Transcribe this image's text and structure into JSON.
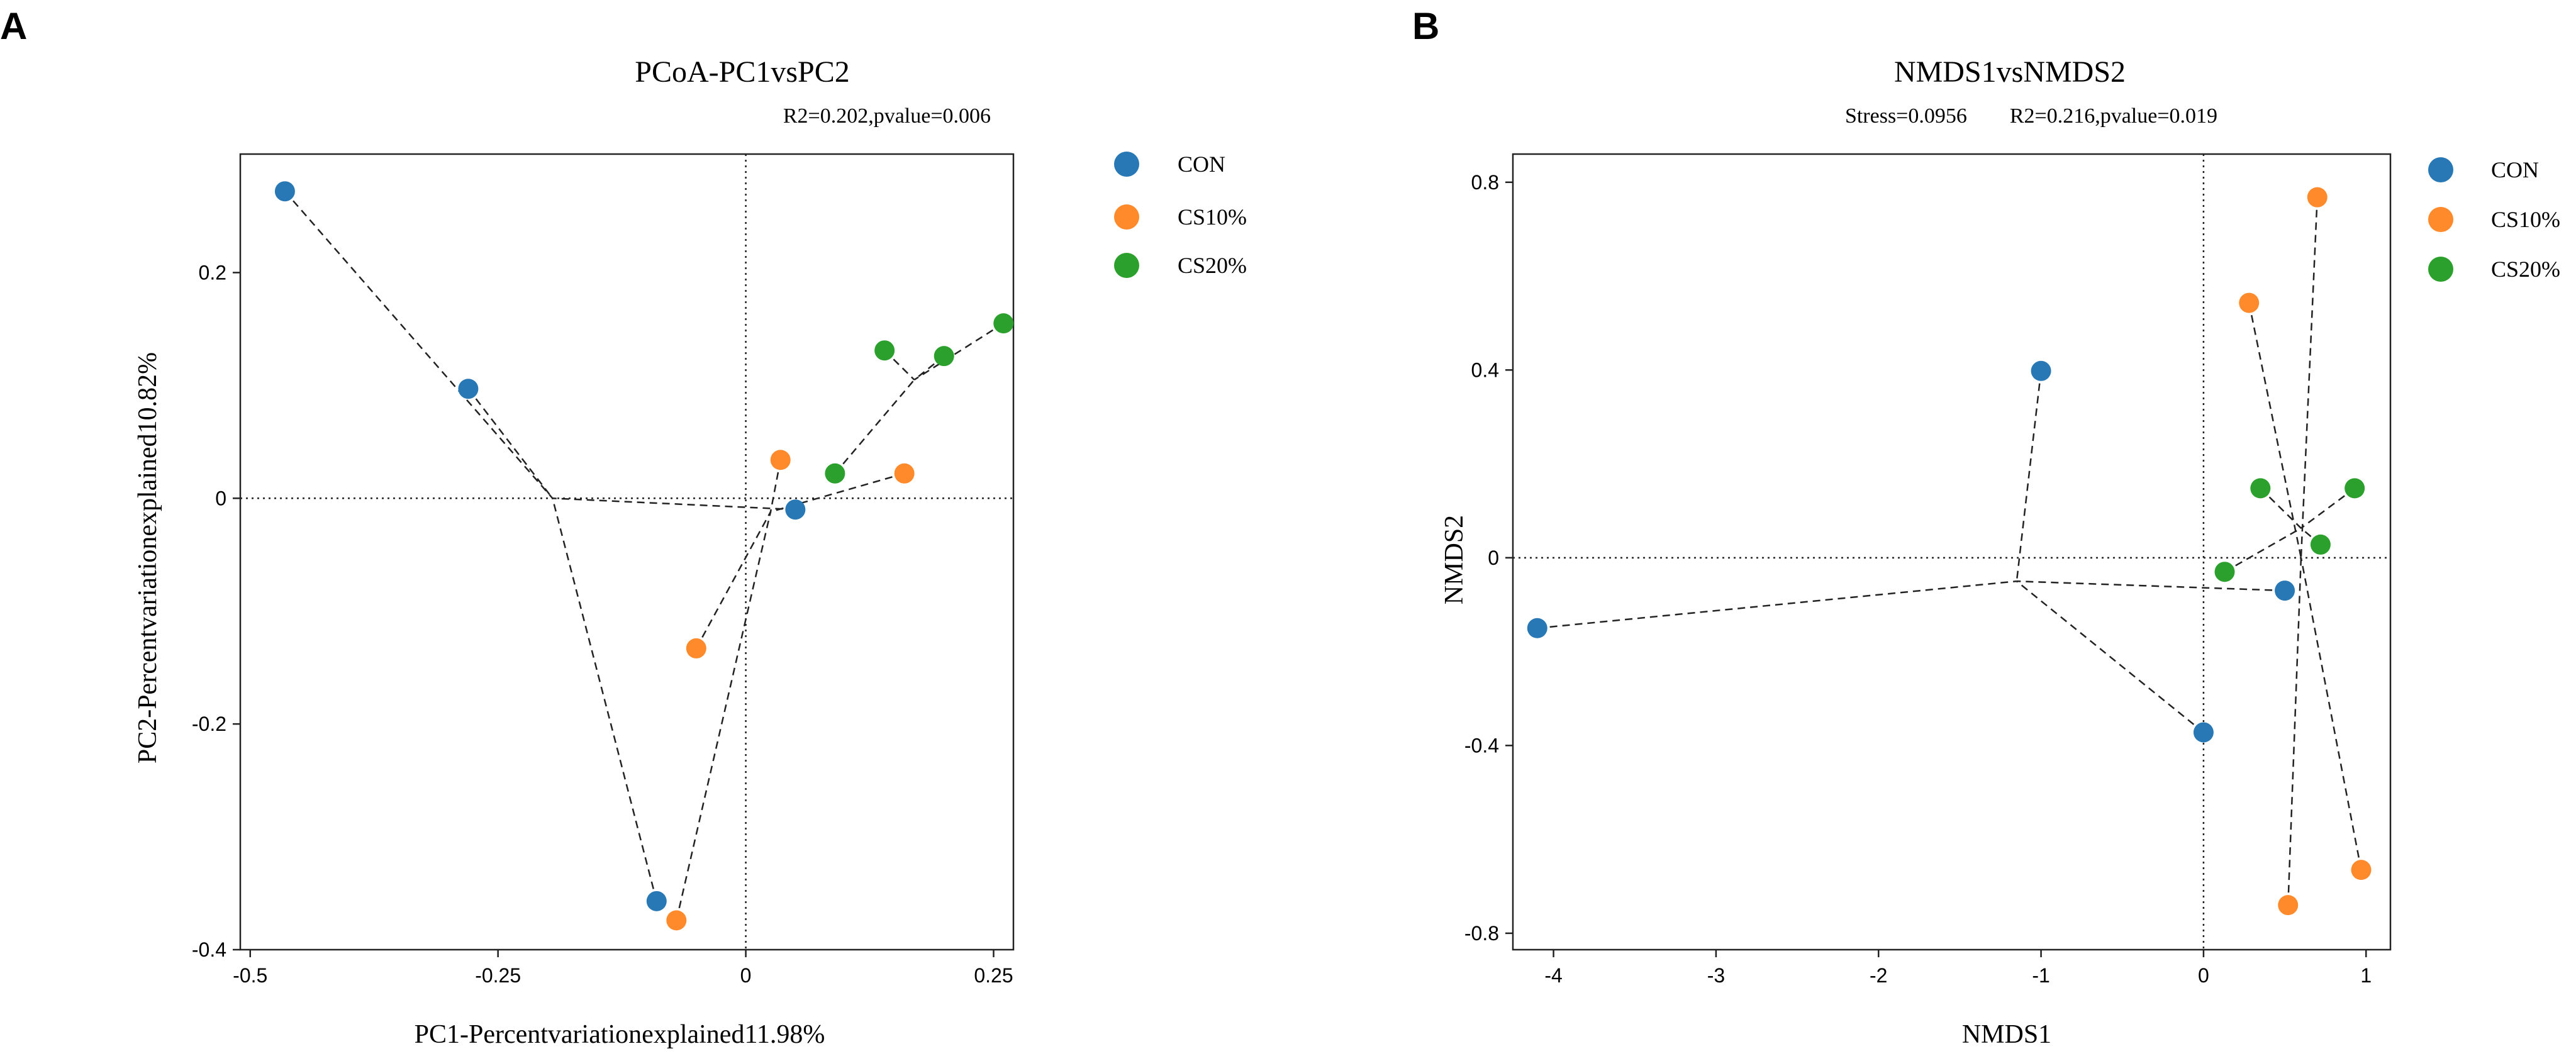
{
  "chart_data": [
    {
      "panel": "A",
      "type": "scatter",
      "title": "PCoA-PC1vsPC2",
      "annotation": "R2=0.202,pvalue=0.006",
      "xlabel": "PC1-Percentvariationexplained11.98%",
      "ylabel": "PC2-Percentvariationexplained10.82%",
      "xlim": [
        -0.51,
        0.27
      ],
      "ylim": [
        -0.4,
        0.305
      ],
      "xticks": [
        -0.5,
        -0.25,
        0,
        0.25
      ],
      "xtick_labels": [
        "-0.5",
        "-0.25",
        "0",
        "0.25"
      ],
      "yticks": [
        -0.4,
        -0.2,
        0,
        0.2
      ],
      "ytick_labels": [
        "-0.4",
        "-0.2",
        "0",
        "0.2"
      ],
      "legend": [
        "CON",
        "CS10%",
        "CS20%"
      ],
      "series": [
        {
          "name": "CON",
          "color": "#2878b5",
          "centroid": [
            -0.195,
            0.0
          ],
          "points": [
            [
              -0.465,
              0.272
            ],
            [
              -0.28,
              0.097
            ],
            [
              -0.09,
              -0.357
            ],
            [
              0.05,
              -0.01
            ]
          ]
        },
        {
          "name": "CS10%",
          "color": "#ff8a2c",
          "centroid": [
            0.025,
            -0.012
          ],
          "points": [
            [
              0.035,
              0.034
            ],
            [
              0.16,
              0.022
            ],
            [
              -0.05,
              -0.133
            ],
            [
              -0.07,
              -0.374
            ]
          ]
        },
        {
          "name": "CS20%",
          "color": "#2ca02c",
          "centroid": [
            0.17,
            0.105
          ],
          "points": [
            [
              0.09,
              0.022
            ],
            [
              0.14,
              0.131
            ],
            [
              0.2,
              0.126
            ],
            [
              0.26,
              0.155
            ]
          ]
        }
      ]
    },
    {
      "panel": "B",
      "type": "scatter",
      "title": "NMDS1vsNMDS2",
      "annotation": "Stress=0.0956        R2=0.216,pvalue=0.019",
      "xlabel": "NMDS1",
      "ylabel": "NMDS2",
      "xlim": [
        -4.25,
        1.15
      ],
      "ylim": [
        -0.835,
        0.86
      ],
      "xticks": [
        -4,
        -3,
        -2,
        -1,
        0,
        1
      ],
      "xtick_labels": [
        "-4",
        "-3",
        "-2",
        "-1",
        "0",
        "1"
      ],
      "yticks": [
        -0.8,
        -0.4,
        0,
        0.4,
        0.8
      ],
      "ytick_labels": [
        "-0.8",
        "-0.4",
        "0",
        "0.4",
        "0.8"
      ],
      "legend": [
        "CON",
        "CS10%",
        "CS20%"
      ],
      "series": [
        {
          "name": "CON",
          "color": "#2878b5",
          "centroid": [
            -1.15,
            -0.05
          ],
          "points": [
            [
              -1.0,
              0.398
            ],
            [
              -4.1,
              -0.15
            ],
            [
              0.0,
              -0.372
            ],
            [
              0.5,
              -0.07
            ]
          ]
        },
        {
          "name": "CS10%",
          "color": "#ff8a2c",
          "centroid": [
            0.6,
            0.0
          ],
          "points": [
            [
              0.7,
              0.768
            ],
            [
              0.28,
              0.543
            ],
            [
              0.52,
              -0.74
            ],
            [
              0.97,
              -0.665
            ]
          ]
        },
        {
          "name": "CS20%",
          "color": "#2ca02c",
          "centroid": [
            0.6,
            0.063
          ],
          "points": [
            [
              0.35,
              0.148
            ],
            [
              0.93,
              0.148
            ],
            [
              0.72,
              0.028
            ],
            [
              0.13,
              -0.03
            ]
          ]
        }
      ]
    }
  ]
}
